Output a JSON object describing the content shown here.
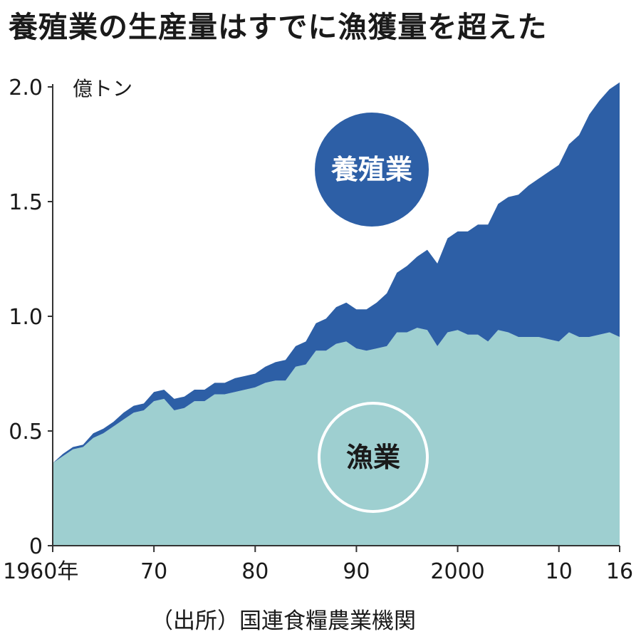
{
  "title": "養殖業の生産量はすでに漁獲量を超えた",
  "source": "（出所）国連食糧農業機関",
  "chart_data": {
    "type": "area",
    "stacked": true,
    "ylabel": "億トン",
    "ylim": [
      0,
      2.0
    ],
    "yticks": [
      {
        "value": 0,
        "label": "0"
      },
      {
        "value": 0.5,
        "label": "0.5"
      },
      {
        "value": 1.0,
        "label": "1.0"
      },
      {
        "value": 1.5,
        "label": "1.5"
      },
      {
        "value": 2.0,
        "label": "2.0"
      }
    ],
    "xlim": [
      1960,
      2016
    ],
    "xticks": [
      {
        "value": 1960,
        "label": "1960年"
      },
      {
        "value": 1970,
        "label": "70"
      },
      {
        "value": 1980,
        "label": "80"
      },
      {
        "value": 1990,
        "label": "90"
      },
      {
        "value": 2000,
        "label": "2000"
      },
      {
        "value": 2010,
        "label": "10"
      },
      {
        "value": 2016,
        "label": "16"
      }
    ],
    "x": [
      1960,
      1961,
      1962,
      1963,
      1964,
      1965,
      1966,
      1967,
      1968,
      1969,
      1970,
      1971,
      1972,
      1973,
      1974,
      1975,
      1976,
      1977,
      1978,
      1979,
      1980,
      1981,
      1982,
      1983,
      1984,
      1985,
      1986,
      1987,
      1988,
      1989,
      1990,
      1991,
      1992,
      1993,
      1994,
      1995,
      1996,
      1997,
      1998,
      1999,
      2000,
      2001,
      2002,
      2003,
      2004,
      2005,
      2006,
      2007,
      2008,
      2009,
      2010,
      2011,
      2012,
      2013,
      2014,
      2015,
      2016
    ],
    "series": [
      {
        "name": "漁業",
        "color": "#9ecfd0",
        "label_style": "white-outline-circle",
        "values": [
          0.36,
          0.39,
          0.42,
          0.43,
          0.47,
          0.49,
          0.52,
          0.55,
          0.58,
          0.59,
          0.63,
          0.64,
          0.59,
          0.6,
          0.63,
          0.63,
          0.66,
          0.66,
          0.67,
          0.68,
          0.69,
          0.71,
          0.72,
          0.72,
          0.78,
          0.79,
          0.85,
          0.85,
          0.88,
          0.89,
          0.86,
          0.85,
          0.86,
          0.87,
          0.93,
          0.93,
          0.95,
          0.94,
          0.87,
          0.93,
          0.94,
          0.92,
          0.92,
          0.89,
          0.94,
          0.93,
          0.91,
          0.91,
          0.91,
          0.9,
          0.89,
          0.93,
          0.91,
          0.91,
          0.92,
          0.93,
          0.91
        ]
      },
      {
        "name": "養殖業",
        "color": "#2d5fa6",
        "label_style": "filled-circle",
        "values": [
          0.0,
          0.01,
          0.01,
          0.01,
          0.02,
          0.02,
          0.02,
          0.03,
          0.03,
          0.03,
          0.04,
          0.04,
          0.05,
          0.05,
          0.05,
          0.05,
          0.05,
          0.05,
          0.06,
          0.06,
          0.06,
          0.07,
          0.08,
          0.09,
          0.09,
          0.1,
          0.12,
          0.14,
          0.16,
          0.17,
          0.17,
          0.18,
          0.2,
          0.23,
          0.26,
          0.29,
          0.31,
          0.35,
          0.36,
          0.41,
          0.43,
          0.45,
          0.48,
          0.51,
          0.55,
          0.59,
          0.62,
          0.66,
          0.69,
          0.73,
          0.77,
          0.82,
          0.88,
          0.97,
          1.02,
          1.06,
          1.11
        ]
      }
    ]
  }
}
